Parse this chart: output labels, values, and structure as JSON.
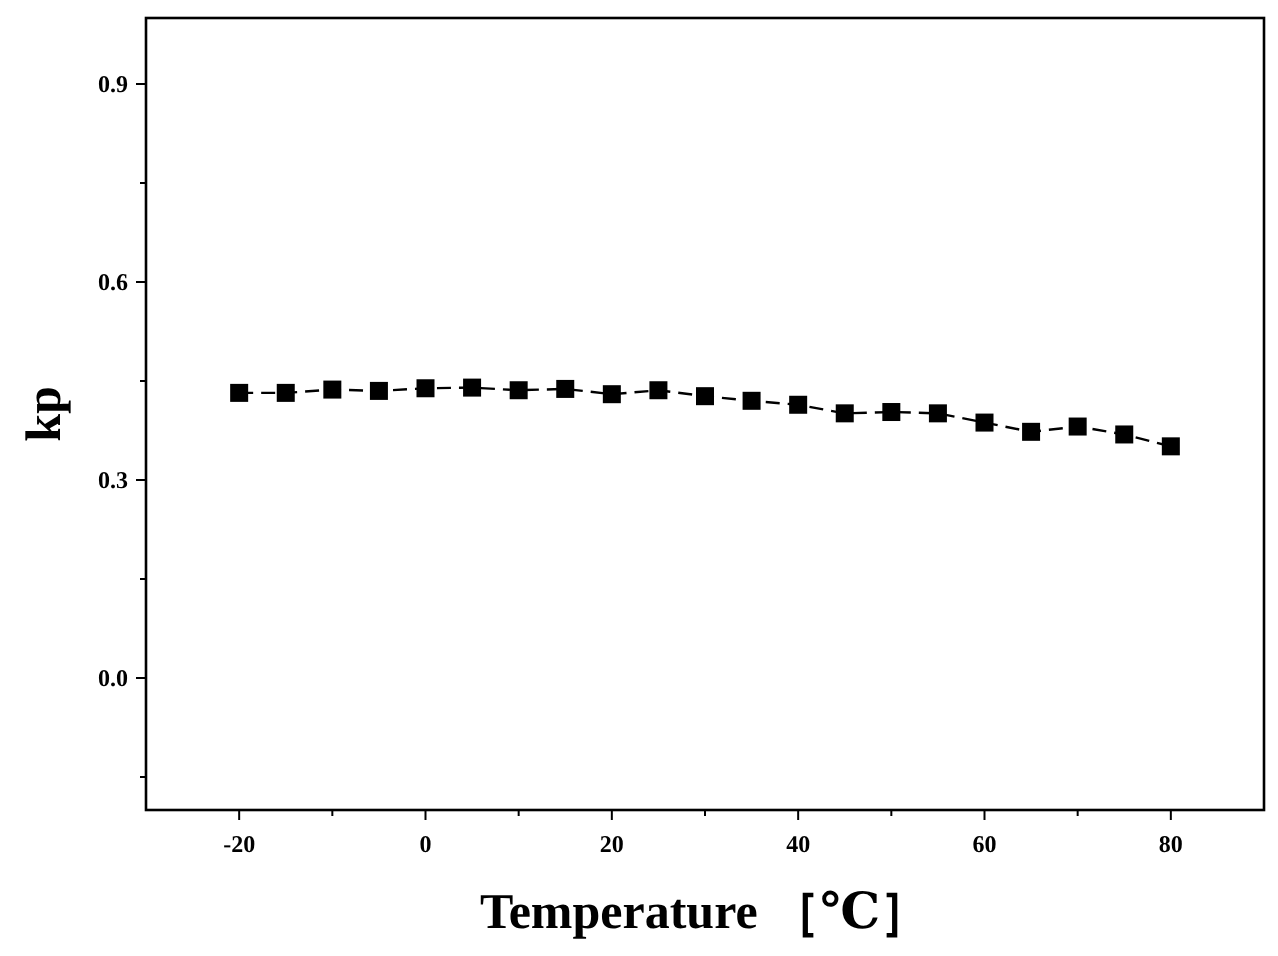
{
  "chart_data": {
    "type": "line",
    "xlabel": "Temperature ［℃］",
    "ylabel": "kp",
    "x": [
      -20,
      -15,
      -10,
      -5,
      0,
      5,
      10,
      15,
      20,
      25,
      30,
      35,
      40,
      45,
      50,
      55,
      60,
      65,
      70,
      75,
      80
    ],
    "series": [
      {
        "color": "#000000",
        "values": [
          0.432,
          0.432,
          0.437,
          0.435,
          0.439,
          0.44,
          0.436,
          0.438,
          0.43,
          0.436,
          0.427,
          0.42,
          0.414,
          0.401,
          0.403,
          0.401,
          0.387,
          0.373,
          0.381,
          0.369,
          0.351
        ]
      }
    ],
    "xlim": [
      -30,
      90
    ],
    "xticks": [
      -20,
      {
        "value": -10,
        "label": null
      },
      0,
      {
        "value": 10,
        "label": null
      },
      20,
      {
        "value": 30,
        "label": null
      },
      40,
      {
        "value": 50,
        "label": null
      },
      60,
      {
        "value": 70,
        "label": null
      },
      80
    ],
    "ylim": [
      -0.2,
      1.0
    ],
    "yticks": [
      {
        "value": -0.15,
        "label": null
      },
      {
        "value": 0,
        "label": "0.0"
      },
      {
        "value": 0.15,
        "label": null
      },
      0.3,
      {
        "value": 0.45,
        "label": null
      },
      0.6,
      {
        "value": 0.75,
        "label": null
      },
      0.9
    ],
    "marker": "square",
    "line_style": "dashed",
    "grid": false
  }
}
